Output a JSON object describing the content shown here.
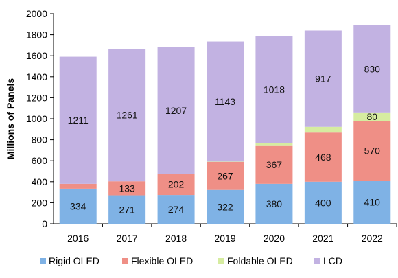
{
  "chart_data": {
    "type": "bar",
    "stacked": true,
    "categories": [
      "2016",
      "2017",
      "2018",
      "2019",
      "2020",
      "2021",
      "2022"
    ],
    "series": [
      {
        "name": "Rigid OLED",
        "color": "#7fb2e5",
        "values": [
          334,
          271,
          274,
          322,
          380,
          400,
          410
        ]
      },
      {
        "name": "Flexible OLED",
        "color": "#ef8f86",
        "values": [
          46,
          133,
          202,
          267,
          367,
          468,
          570
        ]
      },
      {
        "name": "Foldable OLED",
        "color": "#d6eca0",
        "values": [
          0,
          0,
          0,
          3,
          23,
          55,
          80
        ]
      },
      {
        "name": "LCD",
        "color": "#c2b2e2",
        "values": [
          1211,
          1261,
          1207,
          1143,
          1018,
          917,
          830
        ]
      }
    ],
    "ylabel": "Millions of Panels",
    "xlabel": "",
    "ylim": [
      0,
      2000
    ],
    "yticks": [
      0,
      200,
      400,
      600,
      800,
      1000,
      1200,
      1400,
      1600,
      1800,
      2000
    ],
    "grid": false,
    "legend": "bottom"
  }
}
